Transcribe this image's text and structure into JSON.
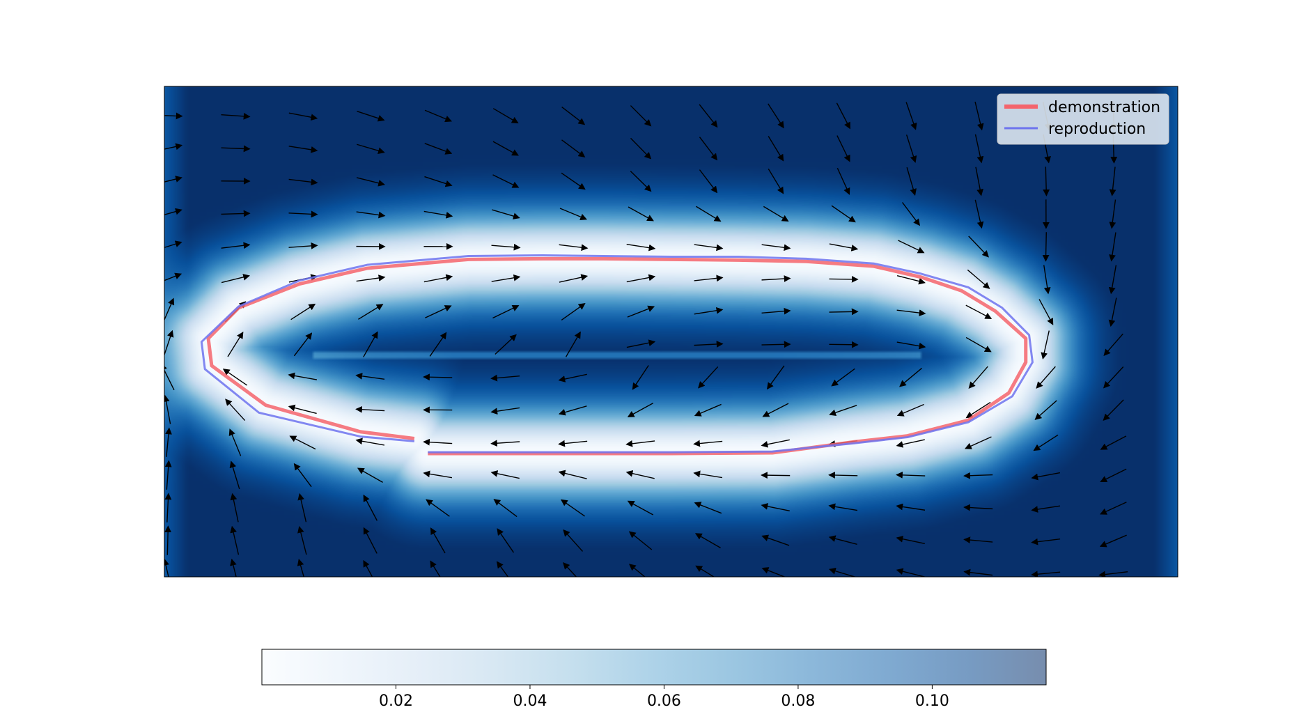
{
  "chart_data": {
    "type": "heatmap",
    "title": "",
    "xlabel": "",
    "ylabel": "",
    "xlim": [
      0,
      15
    ],
    "ylim": [
      0,
      7.2
    ],
    "grid": false,
    "axes_visible": false,
    "legend_placement": "top-right",
    "legend": [
      {
        "label": "demonstration",
        "color": "#f4646c"
      },
      {
        "label": "reproduction",
        "color": "#6d73ee"
      }
    ],
    "background": {
      "field": "Gaussian-process predictive variance",
      "colormap": "Blues",
      "low_color": "#f7fbff",
      "high_color": "#08306b"
    },
    "colorbar": {
      "orientation": "horizontal",
      "range": [
        0.0,
        0.117
      ],
      "ticks": [
        0.02,
        0.04,
        0.06,
        0.08,
        0.1
      ],
      "tick_labels": [
        "0.02",
        "0.04",
        "0.06",
        "0.08",
        "0.10"
      ]
    },
    "series": [
      {
        "name": "demonstration",
        "color": "#f4646c",
        "line_width": "thick",
        "x": [
          3.7,
          2.9,
          1.5,
          0.7,
          0.65,
          1.1,
          2.0,
          3.0,
          4.5,
          5.6,
          6.5,
          7.5,
          8.5,
          9.5,
          10.5,
          11.2,
          11.8,
          12.3,
          12.75,
          12.75,
          12.5,
          11.9,
          11.0,
          10.2,
          9.0,
          7.5,
          6.5,
          5.3,
          3.9
        ],
        "y": [
          2.03,
          2.13,
          2.52,
          3.1,
          3.5,
          3.95,
          4.3,
          4.53,
          4.66,
          4.67,
          4.67,
          4.66,
          4.65,
          4.63,
          4.56,
          4.4,
          4.2,
          3.9,
          3.5,
          3.15,
          2.7,
          2.3,
          2.07,
          1.98,
          1.82,
          1.81,
          1.81,
          1.81,
          1.81
        ]
      },
      {
        "name": "reproduction",
        "color": "#6d73ee",
        "line_width": "thin",
        "x": [
          3.7,
          2.9,
          1.4,
          0.6,
          0.55,
          1.1,
          2.0,
          3.0,
          4.5,
          5.6,
          6.5,
          7.5,
          8.5,
          9.5,
          10.5,
          11.2,
          11.9,
          12.4,
          12.8,
          12.85,
          12.55,
          11.9,
          11.0,
          10.2,
          9.0,
          7.5,
          6.5,
          5.3,
          3.9
        ],
        "y": [
          1.99,
          2.06,
          2.41,
          3.05,
          3.45,
          3.97,
          4.35,
          4.58,
          4.71,
          4.72,
          4.71,
          4.7,
          4.7,
          4.67,
          4.6,
          4.45,
          4.25,
          3.95,
          3.55,
          3.15,
          2.65,
          2.27,
          2.05,
          1.96,
          1.84,
          1.83,
          1.83,
          1.83,
          1.83
        ]
      }
    ]
  }
}
